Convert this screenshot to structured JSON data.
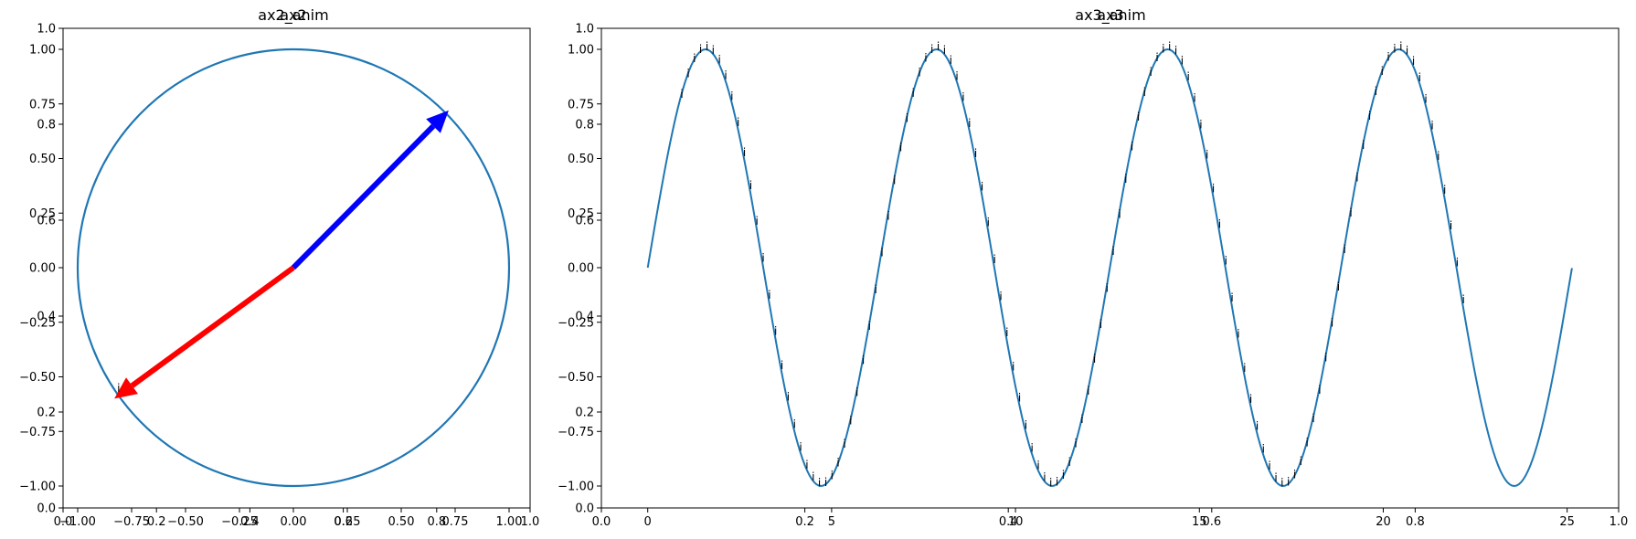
{
  "chart_data": [
    {
      "panel": "left",
      "type": "line",
      "titles": [
        "ax2",
        "ax2_anim"
      ],
      "xlabel": "",
      "ylabel": "",
      "grid": false,
      "outer_axis": {
        "xlim": [
          0,
          1
        ],
        "ylim": [
          0,
          1
        ],
        "xticks": [
          "0.0",
          "0.2",
          "0.4",
          "0.6",
          "0.8",
          "1.0"
        ],
        "yticks": [
          "0.0",
          "0.2",
          "0.4",
          "0.6",
          "0.8",
          "1.0"
        ]
      },
      "inner_axis": {
        "xlim": [
          -1.0,
          1.0
        ],
        "ylim": [
          -1.0,
          1.0
        ],
        "xticks": [
          "−1.00",
          "−0.75",
          "−0.50",
          "−0.25",
          "0.00",
          "0.25",
          "0.50",
          "0.75",
          "1.00"
        ],
        "yticks": [
          "−1.00",
          "−0.75",
          "−0.50",
          "−0.25",
          "0.00",
          "0.25",
          "0.50",
          "0.75",
          "1.00"
        ]
      },
      "series": [
        {
          "kind": "circle",
          "center": [
            0,
            0
          ],
          "radius": 1,
          "color": "#1f77b4"
        },
        {
          "kind": "arrow",
          "from": [
            0,
            0
          ],
          "to": [
            0.72,
            0.72
          ],
          "color": "#0000ff"
        },
        {
          "kind": "arrow",
          "from": [
            0,
            0
          ],
          "to": [
            -0.83,
            -0.6
          ],
          "color": "#ff0000"
        }
      ],
      "annotations": [
        {
          "text": "i",
          "x": -0.81,
          "y": -0.57
        }
      ]
    },
    {
      "panel": "right",
      "type": "line",
      "titles": [
        "ax3",
        "ax3_anim"
      ],
      "xlabel": "",
      "ylabel": "",
      "grid": false,
      "outer_axis": {
        "xlim": [
          0,
          1
        ],
        "ylim": [
          0,
          1
        ],
        "xticks": [
          "0.0",
          "0.2",
          "0.4",
          "0.6",
          "0.8",
          "1.0"
        ],
        "yticks": [
          "0.0",
          "0.2",
          "0.4",
          "0.6",
          "0.8",
          "1.0"
        ]
      },
      "inner_axis": {
        "xlim": [
          -1.26,
          26.4
        ],
        "ylim": [
          -1.0,
          1.0
        ],
        "xticks": [
          "0",
          "5",
          "10",
          "15",
          "20",
          "25"
        ],
        "yticks": [
          "−1.00",
          "−0.75",
          "−0.50",
          "−0.25",
          "0.00",
          "0.25",
          "0.50",
          "0.75",
          "1.00"
        ]
      },
      "series": [
        {
          "kind": "sine",
          "x_range": [
            0,
            25.13
          ],
          "period": 6.283,
          "amplitude": 1,
          "color": "#1f77b4"
        }
      ],
      "annotations": {
        "text": "i",
        "x_range": [
          0.9,
          22.2
        ],
        "step": 0.17,
        "function": "sin(x)"
      }
    }
  ]
}
